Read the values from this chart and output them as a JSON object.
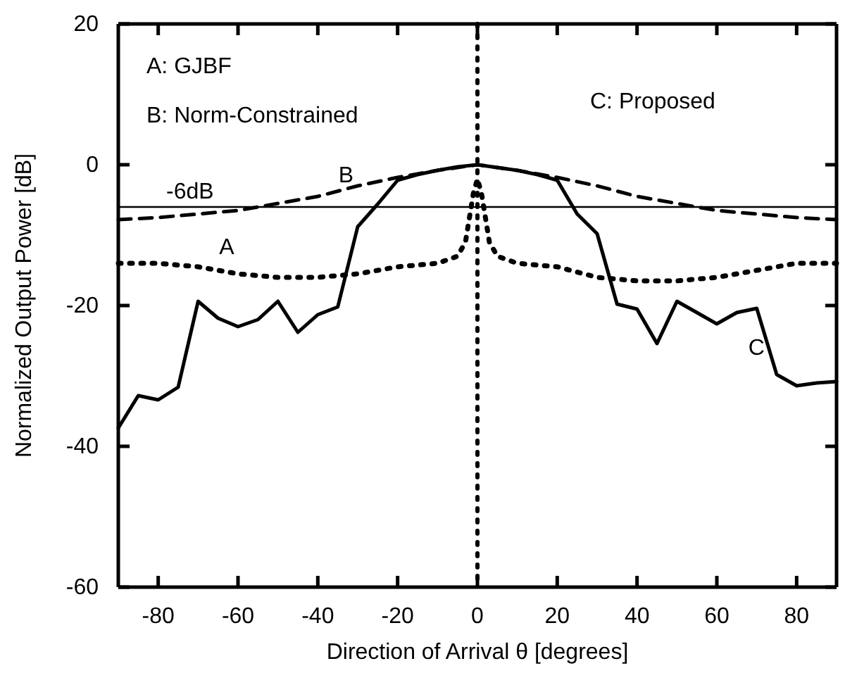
{
  "chart_data": {
    "type": "line",
    "xlabel": "Direction of Arrival θ [degrees]",
    "ylabel": "Normalized Output Power [dB]",
    "xlim": [
      -90,
      90
    ],
    "ylim": [
      -60,
      20
    ],
    "xticks": [
      -80,
      -60,
      -40,
      -20,
      0,
      20,
      40,
      60,
      80
    ],
    "yticks": [
      -60,
      -40,
      -20,
      0,
      20
    ],
    "grid": false,
    "annotations": [
      "A: GJBF",
      "B: Norm-Constrained",
      "C: Proposed"
    ],
    "ref_lines": [
      {
        "axis": "y",
        "value": -6,
        "label": "-6dB",
        "color": "#000000",
        "line_style": "solid"
      },
      {
        "axis": "x",
        "value": 0,
        "label": null,
        "color": "#000000",
        "line_style": "dotted"
      }
    ],
    "series": [
      {
        "name": "A",
        "color": "#000000",
        "line_style": "dotted",
        "x": [
          -90,
          -80,
          -70,
          -60,
          -50,
          -40,
          -30,
          -20,
          -10,
          -5,
          -3,
          -1,
          0,
          1,
          3,
          5,
          10,
          20,
          30,
          40,
          50,
          60,
          70,
          80,
          90
        ],
        "values": [
          -14,
          -14,
          -14.5,
          -15.5,
          -16,
          -16,
          -15.5,
          -14.5,
          -14,
          -13,
          -11,
          -4,
          -2,
          -4,
          -11,
          -13,
          -14,
          -14.5,
          -16,
          -16.5,
          -16.5,
          -16,
          -15,
          -14,
          -14
        ]
      },
      {
        "name": "B",
        "color": "#000000",
        "line_style": "dashed",
        "x": [
          -90,
          -80,
          -70,
          -60,
          -50,
          -40,
          -30,
          -20,
          -10,
          0,
          10,
          20,
          30,
          40,
          50,
          60,
          70,
          80,
          90
        ],
        "values": [
          -7.8,
          -7.5,
          -7,
          -6.5,
          -5.5,
          -4.5,
          -3,
          -1.8,
          -0.8,
          0,
          -0.8,
          -1.8,
          -3,
          -4.5,
          -5.5,
          -6.5,
          -7,
          -7.5,
          -7.8
        ]
      },
      {
        "name": "C",
        "color": "#000000",
        "line_style": "solid",
        "x": [
          -90,
          -85,
          -80,
          -75,
          -70,
          -65,
          -60,
          -55,
          -50,
          -45,
          -40,
          -35,
          -30,
          -25,
          -20,
          -15,
          -10,
          -5,
          0,
          5,
          10,
          15,
          20,
          25,
          30,
          35,
          40,
          45,
          50,
          55,
          60,
          65,
          70,
          75,
          80,
          85,
          90
        ],
        "values": [
          -37.4,
          -32.8,
          -33.4,
          -31.6,
          -19.4,
          -21.8,
          -23,
          -22,
          -19.4,
          -23.8,
          -21.3,
          -20.2,
          -8.8,
          -5.6,
          -2.2,
          -1.4,
          -0.8,
          -0.3,
          0,
          -0.4,
          -0.8,
          -1.4,
          -2.2,
          -7,
          -9.8,
          -19.8,
          -20.5,
          -25.4,
          -19.4,
          -21,
          -22.6,
          -21,
          -20.4,
          -29.8,
          -31.4,
          -31,
          -30.8
        ]
      }
    ]
  }
}
